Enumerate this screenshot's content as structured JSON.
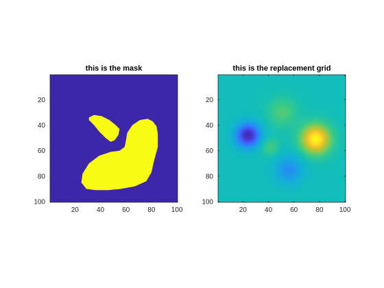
{
  "chart_data": [
    {
      "type": "heatmap",
      "title": "this is the mask",
      "xlabel": "",
      "ylabel": "",
      "xlim": [
        0.5,
        100.5
      ],
      "ylim": [
        100.5,
        0.5
      ],
      "x_ticks": [
        20,
        40,
        60,
        80,
        100
      ],
      "y_ticks": [
        20,
        40,
        60,
        80,
        100
      ],
      "x_tick_labels": [
        "20",
        "40",
        "60",
        "80",
        "100"
      ],
      "y_tick_labels": [
        "20",
        "40",
        "60",
        "80",
        "100"
      ],
      "grid": false,
      "colormap": "parula",
      "value_range": [
        0,
        1
      ],
      "background_value": 0,
      "regions": [
        {
          "value": 1,
          "shape": "small lobe",
          "outline": [
            [
              31,
              34
            ],
            [
              35,
              32
            ],
            [
              41,
              33
            ],
            [
              47,
              36
            ],
            [
              52,
              40
            ],
            [
              55,
              43
            ],
            [
              54,
              48
            ],
            [
              51,
              52
            ],
            [
              48,
              53
            ],
            [
              44,
              50
            ],
            [
              39,
              45
            ],
            [
              35,
              40
            ],
            [
              31,
              36
            ]
          ]
        },
        {
          "value": 1,
          "shape": "large blob",
          "outline": [
            [
              81,
              37
            ],
            [
              77,
              35
            ],
            [
              71,
              36
            ],
            [
              65,
              40
            ],
            [
              61,
              46
            ],
            [
              60,
              52
            ],
            [
              59,
              57
            ],
            [
              55,
              60
            ],
            [
              48,
              61
            ],
            [
              39,
              64
            ],
            [
              31,
              70
            ],
            [
              26,
              78
            ],
            [
              25,
              85
            ],
            [
              29,
              90
            ],
            [
              36,
              91
            ],
            [
              46,
              91
            ],
            [
              56,
              90
            ],
            [
              67,
              88
            ],
            [
              76,
              84
            ],
            [
              80,
              77
            ],
            [
              82,
              68
            ],
            [
              85,
              57
            ],
            [
              85,
              47
            ],
            [
              84,
              41
            ]
          ]
        }
      ]
    },
    {
      "type": "heatmap",
      "title": "this is the replacement grid",
      "xlabel": "",
      "ylabel": "",
      "xlim": [
        0.5,
        100.5
      ],
      "ylim": [
        100.5,
        0.5
      ],
      "x_ticks": [
        20,
        40,
        60,
        80,
        100
      ],
      "y_ticks": [
        20,
        40,
        60,
        80,
        100
      ],
      "x_tick_labels": [
        "20",
        "40",
        "60",
        "80",
        "100"
      ],
      "y_tick_labels": [
        "20",
        "40",
        "60",
        "80",
        "100"
      ],
      "grid": false,
      "colormap": "parula",
      "value_range": [
        0,
        1
      ],
      "background_value": 0.5,
      "components": [
        {
          "x": 24,
          "y": 48,
          "amplitude": -0.48,
          "sigma": 7
        },
        {
          "x": 77,
          "y": 51,
          "amplitude": 0.5,
          "sigma": 8
        },
        {
          "x": 56,
          "y": 75,
          "amplitude": -0.22,
          "sigma": 8
        },
        {
          "x": 51,
          "y": 30,
          "amplitude": 0.14,
          "sigma": 8
        },
        {
          "x": 41,
          "y": 57,
          "amplitude": 0.13,
          "sigma": 5
        }
      ]
    }
  ],
  "colors": {
    "parula_low": "#3e26a8",
    "parula_high": "#f9fb15",
    "axis": "#262626",
    "title": "#000000"
  }
}
